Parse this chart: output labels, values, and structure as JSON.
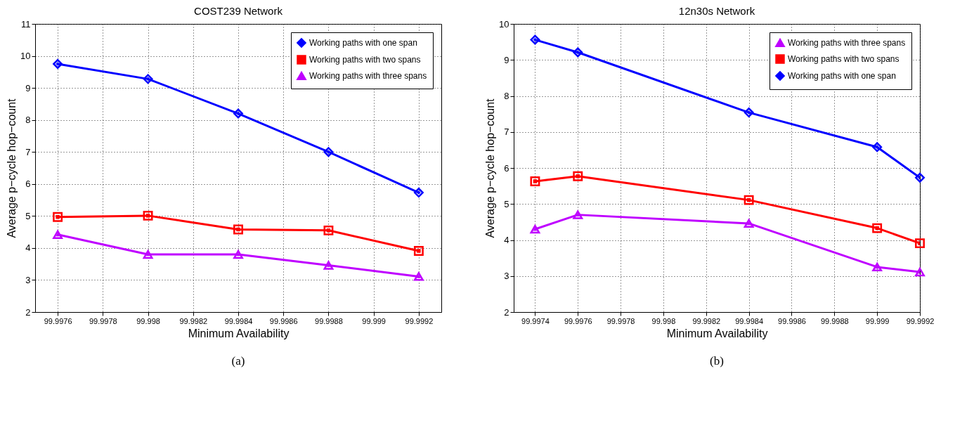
{
  "chart_data": [
    {
      "type": "line",
      "title": "COST239 Network",
      "xlabel": "Minimum Availability",
      "ylabel": "Average p−cycle hop−count",
      "x": [
        99.9976,
        99.998,
        99.9984,
        99.9988,
        99.9992
      ],
      "xlim": [
        99.9975,
        99.9993
      ],
      "xticks": [
        99.9976,
        99.9978,
        99.998,
        99.9982,
        99.9984,
        99.9986,
        99.9988,
        99.999,
        99.9992
      ],
      "ylim": [
        2,
        11
      ],
      "yticks": [
        2,
        3,
        4,
        5,
        6,
        7,
        8,
        9,
        10,
        11
      ],
      "grid": true,
      "legend": "top right",
      "line_style": "solid",
      "annotations": [
        "(a)"
      ],
      "series": [
        {
          "name": "Working paths with one span",
          "color": "#0000ff",
          "marker": "diamond",
          "values": [
            9.75,
            9.28,
            8.2,
            7.0,
            5.73
          ]
        },
        {
          "name": "Working paths with two spans",
          "color": "#ff0000",
          "marker": "square",
          "values": [
            4.97,
            5.01,
            4.58,
            4.55,
            3.91
          ]
        },
        {
          "name": "Working paths with three spans",
          "color": "#bf00ff",
          "marker": "triangle",
          "values": [
            4.42,
            3.8,
            3.8,
            3.46,
            3.11
          ]
        }
      ]
    },
    {
      "type": "line",
      "title": "12n30s Network",
      "xlabel": "Minimum Availability",
      "ylabel": "Average p−cycle hop−count",
      "x": [
        99.9974,
        99.9976,
        99.9984,
        99.999,
        99.9992
      ],
      "xlim": [
        99.9973,
        99.9992
      ],
      "xticks": [
        99.9974,
        99.9976,
        99.9978,
        99.998,
        99.9982,
        99.9984,
        99.9986,
        99.9988,
        99.999,
        99.9992
      ],
      "ylim": [
        2,
        10
      ],
      "yticks": [
        2,
        3,
        4,
        5,
        6,
        7,
        8,
        9,
        10
      ],
      "grid": true,
      "legend": "top right",
      "line_style": "solid",
      "annotations": [
        "(b)"
      ],
      "series": [
        {
          "name": "Working paths with three spans",
          "color": "#bf00ff",
          "marker": "triangle",
          "values": [
            4.3,
            4.7,
            4.46,
            3.25,
            3.11
          ]
        },
        {
          "name": "Working paths with two spans",
          "color": "#ff0000",
          "marker": "square",
          "values": [
            5.63,
            5.77,
            5.11,
            4.33,
            3.91
          ]
        },
        {
          "name": "Working paths with one span",
          "color": "#0000ff",
          "marker": "diamond",
          "values": [
            9.56,
            9.21,
            7.54,
            6.58,
            5.73
          ]
        }
      ]
    }
  ]
}
